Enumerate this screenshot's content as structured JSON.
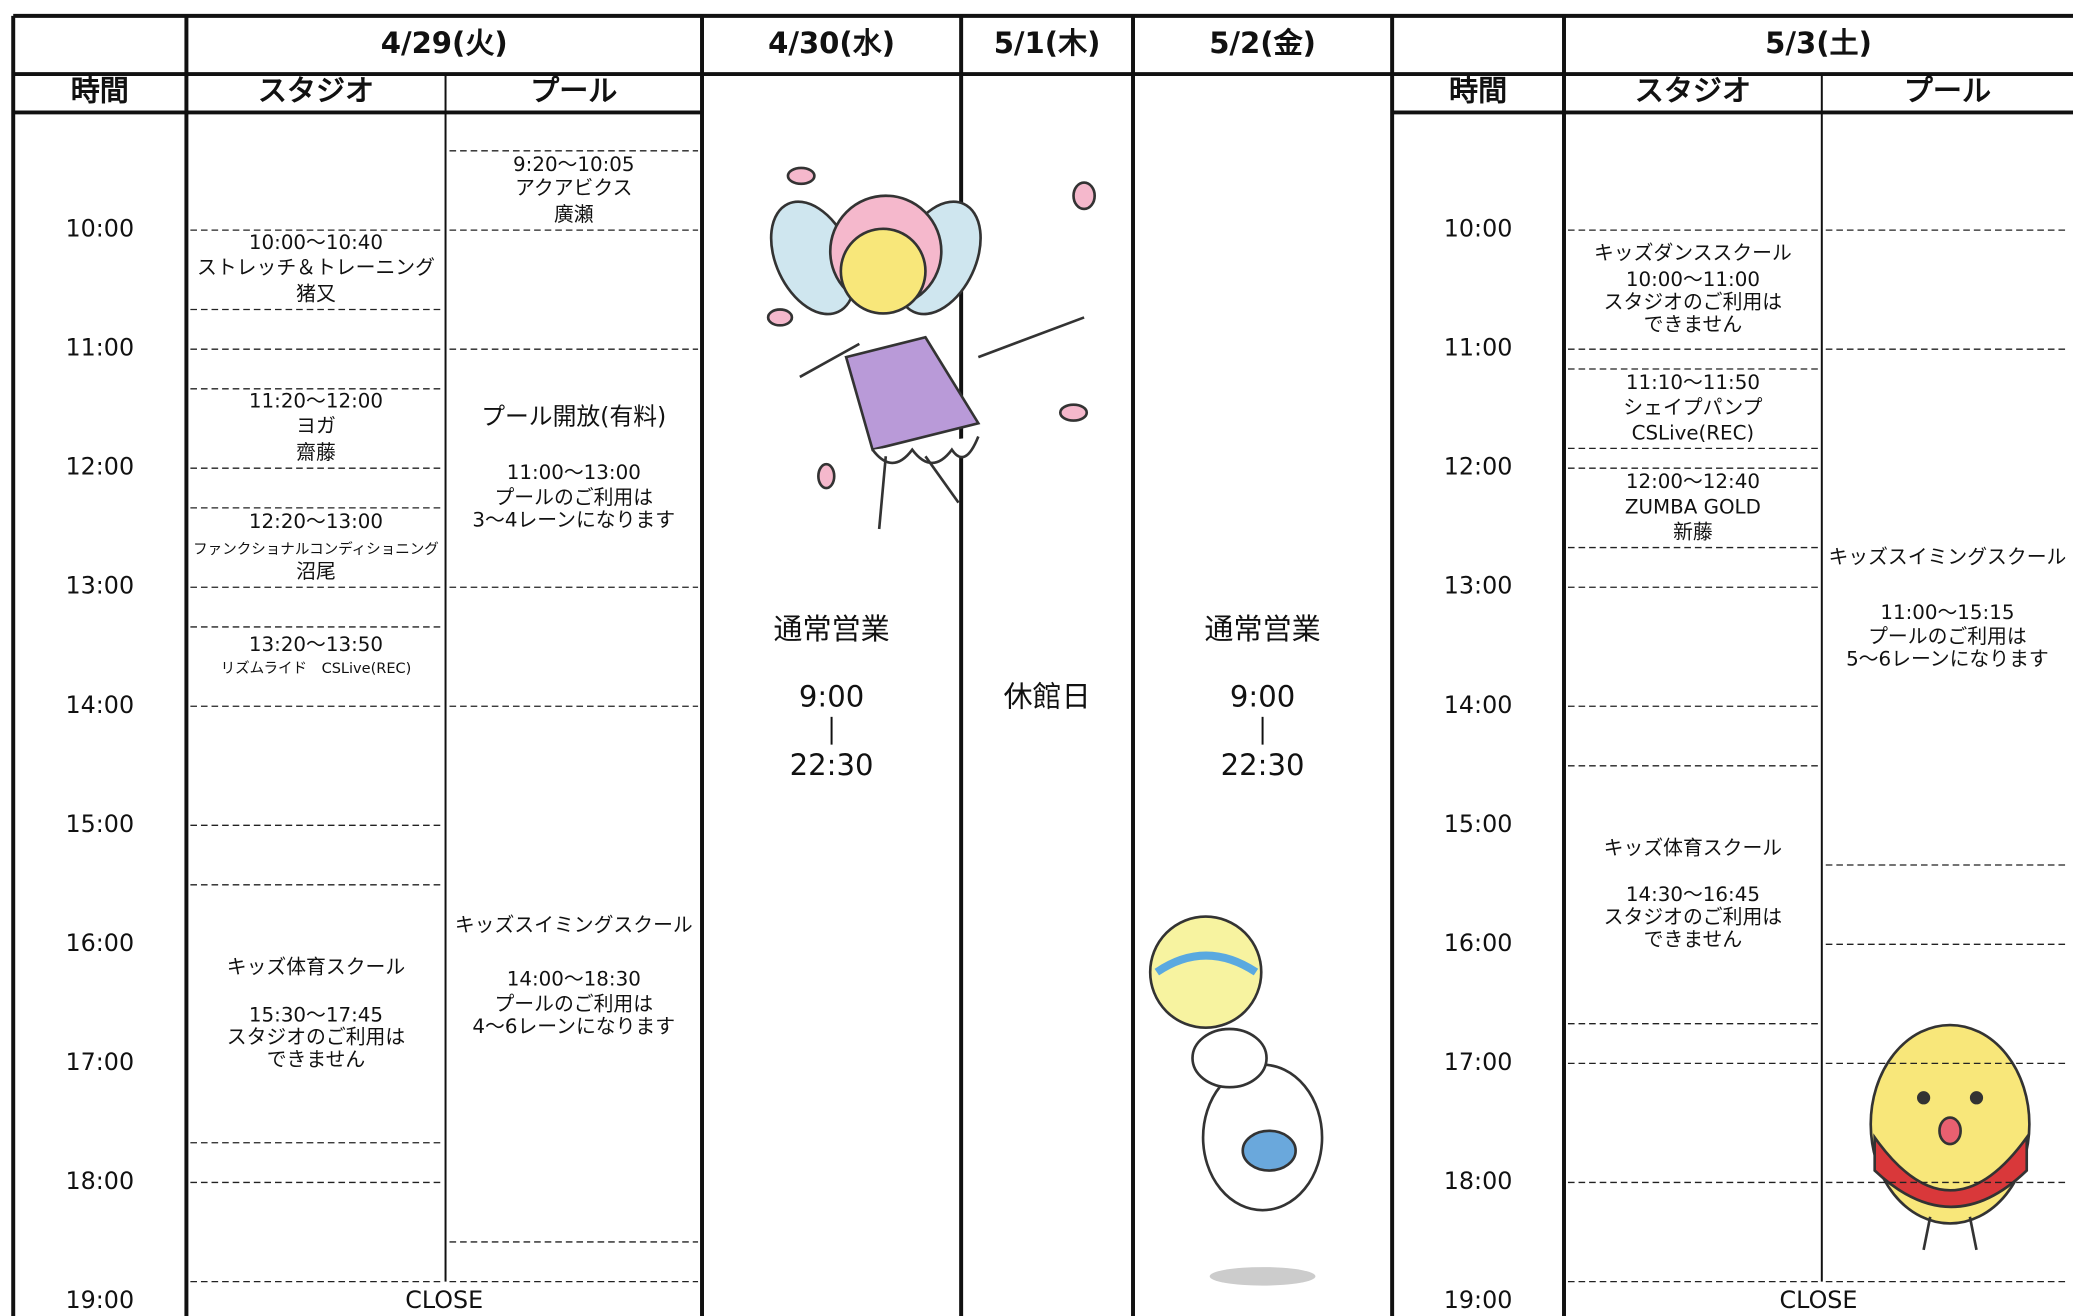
{
  "time_columns": [
    {
      "label": "時間",
      "times": [
        "10:00",
        "11:00",
        "12:00",
        "13:00",
        "14:00",
        "15:00",
        "16:00",
        "17:00",
        "18:00",
        "19:00"
      ]
    },
    {
      "label": "時間",
      "times": [
        "10:00",
        "11:00",
        "12:00",
        "13:00",
        "14:00",
        "15:00",
        "16:00",
        "17:00",
        "18:00",
        "19:00"
      ]
    }
  ],
  "days": [
    {
      "date": "4/29(火)",
      "close": "CLOSE",
      "studio": {
        "label": "スタジオ",
        "events": [
          {
            "lines": [
              "10:00～10:40",
              "ストレッチ＆トレーニング",
              "猪又"
            ]
          },
          {
            "lines": [
              "11:20～12:00",
              "ヨガ",
              "齋藤"
            ]
          },
          {
            "lines": [
              "12:20～13:00",
              "ファンクショナルコンディショニング",
              "沼尾"
            ]
          },
          {
            "lines": [
              "13:20～13:50",
              "リズムライド　CSLive(REC)"
            ]
          },
          {
            "lines": [
              "キッズ体育スクール",
              "15:30～17:45",
              "スタジオのご利用は",
              "できません"
            ]
          }
        ]
      },
      "pool": {
        "label": "プール",
        "events": [
          {
            "lines": [
              "9:20～10:05",
              "アクアビクス",
              "廣瀬"
            ]
          },
          {
            "lines": [
              "プール開放(有料)",
              "11:00～13:00",
              "プールのご利用は",
              "3～4レーンになります"
            ]
          },
          {
            "lines": [
              "キッズスイミングスクール",
              "14:00～18:30",
              "プールのご利用は",
              "4～6レーンになります"
            ]
          }
        ]
      }
    },
    {
      "date": "4/30(水)",
      "note": {
        "title": "通常営業",
        "open": "9:00",
        "close": "22:30"
      }
    },
    {
      "date": "5/1(木)",
      "note": {
        "title": "休館日"
      }
    },
    {
      "date": "5/2(金)",
      "note": {
        "title": "通常営業",
        "open": "9:00",
        "close": "22:30"
      }
    },
    {
      "date": "5/3(土)",
      "close": "CLOSE",
      "studio": {
        "label": "スタジオ",
        "events": [
          {
            "lines": [
              "キッズダンススクール",
              "10:00～11:00",
              "スタジオのご利用は",
              "できません"
            ]
          },
          {
            "lines": [
              "11:10～11:50",
              "シェイプパンプ",
              "CSLive(REC)"
            ]
          },
          {
            "lines": [
              "12:00～12:40",
              "ZUMBA GOLD",
              "新藤"
            ]
          },
          {
            "lines": [
              "キッズ体育スクール",
              "14:30～16:45",
              "スタジオのご利用は",
              "できません"
            ]
          }
        ]
      },
      "pool": {
        "label": "プール",
        "events": [
          {
            "lines": [
              "キッズスイミングスクール",
              "11:00～15:15",
              "プールのご利用は",
              "5～6レーンになります"
            ]
          }
        ]
      }
    }
  ]
}
